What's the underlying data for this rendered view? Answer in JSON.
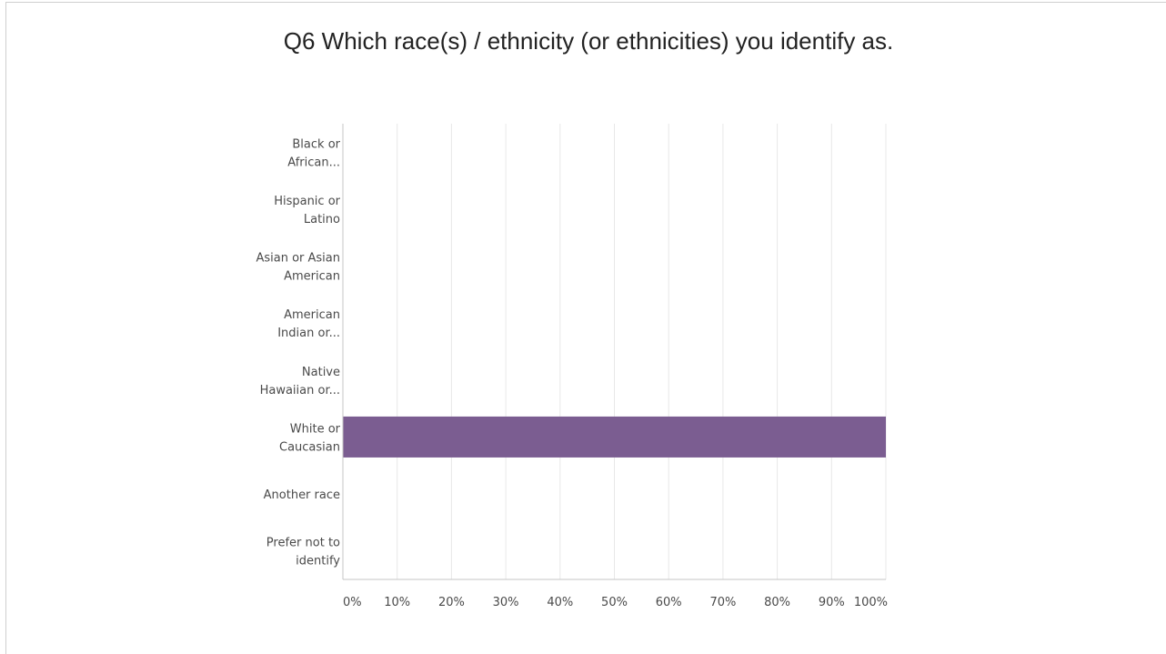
{
  "chart_data": {
    "type": "bar",
    "orientation": "horizontal",
    "title": "Q6 Which race(s) / ethnicity (or ethnicities) you identify as.",
    "categories": [
      [
        "Black or",
        "African..."
      ],
      [
        "Hispanic or",
        "Latino"
      ],
      [
        "Asian or Asian",
        "American"
      ],
      [
        "American",
        "Indian or..."
      ],
      [
        "Native",
        "Hawaiian or..."
      ],
      [
        "White or",
        "Caucasian"
      ],
      [
        "Another race"
      ],
      [
        "Prefer not to",
        "identify"
      ]
    ],
    "values": [
      0,
      0,
      0,
      0,
      0,
      100,
      0,
      0
    ],
    "xlim": [
      0,
      100
    ],
    "x_ticks": [
      "0%",
      "10%",
      "20%",
      "30%",
      "40%",
      "50%",
      "60%",
      "70%",
      "80%",
      "90%",
      "100%"
    ],
    "grid": true,
    "bar_color": "#7b5d91",
    "grid_color": "#e8e8e8",
    "axis_color": "#c4c4c4"
  }
}
